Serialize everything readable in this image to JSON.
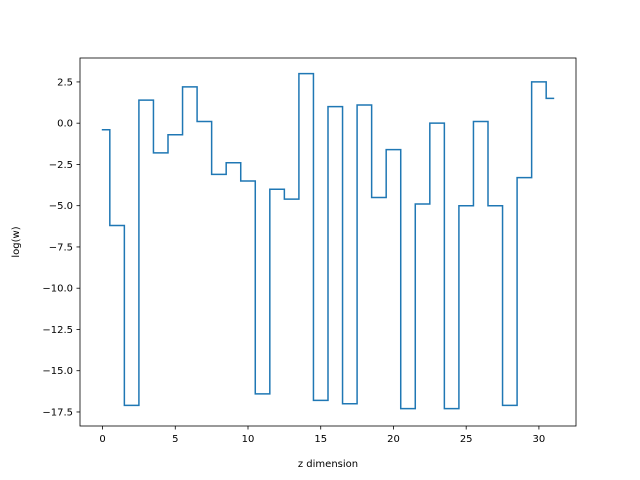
{
  "chart_data": {
    "type": "line",
    "drawstyle": "steps-mid",
    "title": "",
    "xlabel": "z dimension",
    "ylabel": "log(w)",
    "xlim": [
      -1.55,
      32.55
    ],
    "ylim": [
      -18.35,
      3.95
    ],
    "grid": false,
    "legend": "none",
    "color": "#1f77b4",
    "x_ticks": [
      {
        "value": 0,
        "label": "0"
      },
      {
        "value": 5,
        "label": "5"
      },
      {
        "value": 10,
        "label": "10"
      },
      {
        "value": 15,
        "label": "15"
      },
      {
        "value": 20,
        "label": "20"
      },
      {
        "value": 25,
        "label": "25"
      },
      {
        "value": 30,
        "label": "30"
      }
    ],
    "y_ticks": [
      {
        "value": 2.5,
        "label": "2.5"
      },
      {
        "value": 0,
        "label": "0.0"
      },
      {
        "value": -2.5,
        "label": "−2.5"
      },
      {
        "value": -5,
        "label": "−5.0"
      },
      {
        "value": -7.5,
        "label": "−7.5"
      },
      {
        "value": -10,
        "label": "−10.0"
      },
      {
        "value": -12.5,
        "label": "−12.5"
      },
      {
        "value": -15,
        "label": "−15.0"
      },
      {
        "value": -17.5,
        "label": "−17.5"
      }
    ],
    "x": [
      0,
      1,
      2,
      3,
      4,
      5,
      6,
      7,
      8,
      9,
      10,
      11,
      12,
      13,
      14,
      15,
      16,
      17,
      18,
      19,
      20,
      21,
      22,
      23,
      24,
      25,
      26,
      27,
      28,
      29,
      30,
      31
    ],
    "series": [
      {
        "values": [
          -0.4,
          -6.2,
          -17.1,
          1.4,
          -1.8,
          -0.7,
          2.2,
          0.1,
          -3.1,
          -2.4,
          -3.5,
          -16.4,
          -4.0,
          -4.6,
          3.0,
          -16.8,
          1.0,
          -17.0,
          1.1,
          -4.5,
          -1.6,
          -17.3,
          -4.9,
          0.0,
          -17.3,
          -5.0,
          0.1,
          -5.0,
          -17.1,
          -3.3,
          2.5,
          1.5
        ]
      }
    ]
  }
}
